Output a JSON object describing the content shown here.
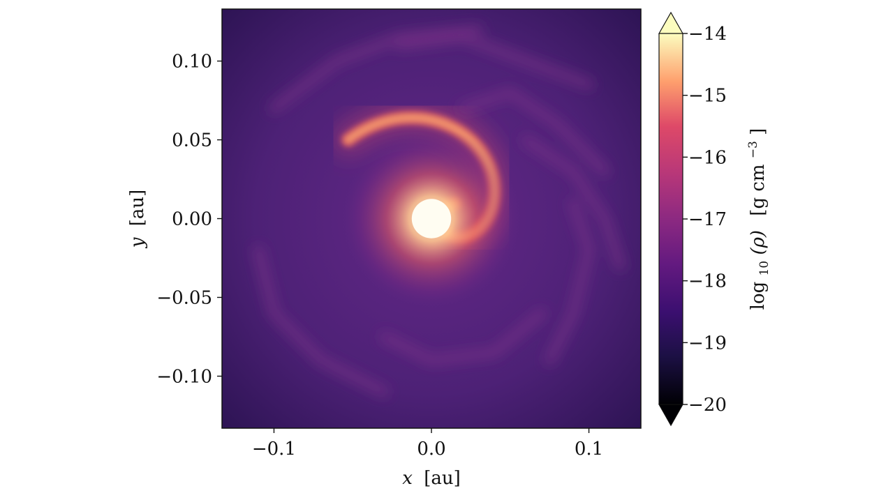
{
  "chart_data": {
    "type": "heatmap",
    "title": "",
    "xlabel": {
      "var": "x",
      "unit": "[au]"
    },
    "ylabel": {
      "var": "y",
      "unit": "[au]"
    },
    "xlim": [
      -0.133,
      0.133
    ],
    "ylim": [
      -0.133,
      0.133
    ],
    "x_ticks": [
      {
        "value": -0.1,
        "label": "−0.1"
      },
      {
        "value": 0.0,
        "label": "0.0"
      },
      {
        "value": 0.1,
        "label": "0.1"
      }
    ],
    "y_ticks": [
      {
        "value": 0.1,
        "label": "0.10"
      },
      {
        "value": 0.05,
        "label": "0.05"
      },
      {
        "value": 0.0,
        "label": "0.00"
      },
      {
        "value": -0.05,
        "label": "−0.05"
      },
      {
        "value": -0.1,
        "label": "−0.10"
      }
    ],
    "colorbar": {
      "label": {
        "prefix": "log",
        "sub": "10",
        "arg": "(ρ)",
        "unit": "[g cm",
        "exp": "−3",
        "close": "]"
      },
      "range": [
        -20,
        -14
      ],
      "extend": "both",
      "colormap": "magma",
      "ticks": [
        {
          "value": -14,
          "label": "−14"
        },
        {
          "value": -15,
          "label": "−15"
        },
        {
          "value": -16,
          "label": "−16"
        },
        {
          "value": -17,
          "label": "−17"
        },
        {
          "value": -18,
          "label": "−18"
        },
        {
          "value": -19,
          "label": "−19"
        },
        {
          "value": -20,
          "label": "−20"
        }
      ]
    },
    "features": {
      "star": {
        "x": 0.0,
        "y": 0.0,
        "radius_au": 0.0125,
        "log_density": -14
      },
      "ambient_log_density": -18.2,
      "spiral_arm_log_density": -16.0
    }
  }
}
